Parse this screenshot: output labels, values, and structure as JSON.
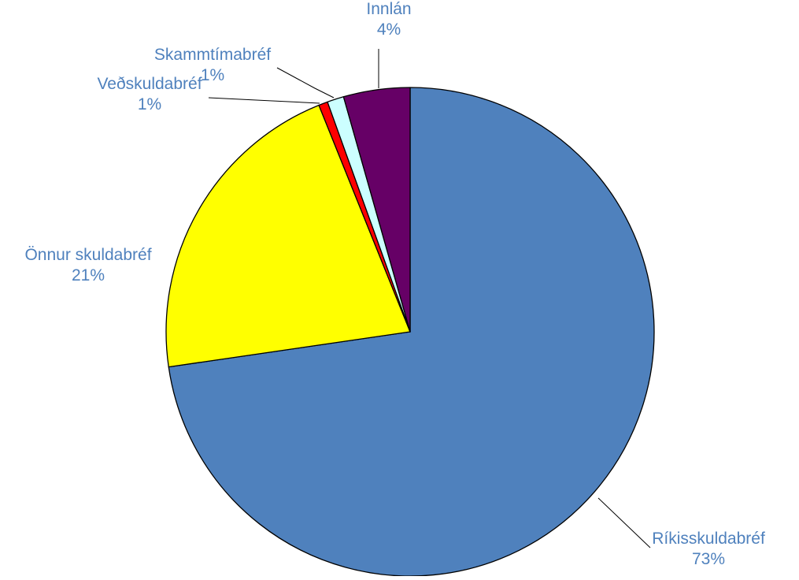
{
  "chart_data": {
    "type": "pie",
    "title": "",
    "slices": [
      {
        "name": "Ríkisskuldabréf",
        "label": "73%",
        "value": 72.7,
        "color": "#4f81bd"
      },
      {
        "name": "Önnur skuldabréf",
        "label": "21%",
        "value": 21.2,
        "color": "#ffff00"
      },
      {
        "name": "Veðskuldabréf",
        "label": "1%",
        "value": 0.6,
        "color": "#ff0000"
      },
      {
        "name": "Skammtímabréf",
        "label": "1%",
        "value": 1.1,
        "color": "#ccffff"
      },
      {
        "name": "Innlán",
        "label": "4%",
        "value": 4.4,
        "color": "#660066"
      }
    ],
    "label_color": "#4f81bd",
    "start_position": "12 o'clock",
    "direction": "clockwise",
    "legend": "none"
  }
}
